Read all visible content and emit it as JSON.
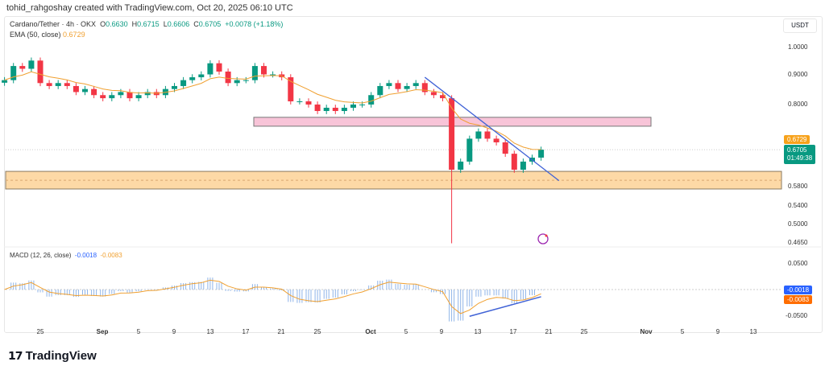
{
  "header": {
    "text": "tohid_rahgoshay created with TradingView.com, Oct 20, 2025 06:10 UTC"
  },
  "legend": {
    "symbol": "Cardano/Tether · 4h · OKX",
    "o_label": "O",
    "o": "0.6630",
    "h_label": "H",
    "h": "0.6715",
    "l_label": "L",
    "l": "0.6606",
    "c_label": "C",
    "c": "0.6705",
    "change": "+0.0078 (+1.18%)",
    "ema_label": "EMA (50, close)",
    "ema_value": "0.6729"
  },
  "macd_legend": {
    "label": "MACD (12, 26, close)",
    "macd": "-0.0018",
    "signal": "-0.0083"
  },
  "price_axis": {
    "currency": "USDT",
    "ticks": [
      "1.0000",
      "0.9000",
      "0.8000",
      "0.5800",
      "0.5400",
      "0.5000",
      "0.4650"
    ],
    "ema_tag": "0.6729",
    "price_tag": "0.6705",
    "countdown": "01:49:38"
  },
  "macd_axis": {
    "ticks": [
      "0.0500",
      "-0.0500"
    ],
    "macd_tag": "-0.0018",
    "signal_tag": "-0.0083"
  },
  "time_axis": {
    "ticks": [
      "25",
      "Sep",
      "5",
      "9",
      "13",
      "17",
      "21",
      "25",
      "Oct",
      "5",
      "9",
      "13",
      "17",
      "21",
      "25",
      "Nov",
      "5",
      "9",
      "13"
    ]
  },
  "brand": {
    "logo_text": "TradingView"
  },
  "colors": {
    "up": "#089981",
    "down": "#f23645",
    "ema": "#f0a030",
    "trendline": "#4062d6",
    "resistance_zone": "#f8c4d8",
    "support_zone": "#fdd9a6",
    "macd_tag": "#2962ff",
    "signal_tag": "#ff6d00"
  },
  "chart_data": {
    "type": "candlestick",
    "scale": "log",
    "ylim": [
      0.465,
      1.02
    ],
    "dates": [
      "08-21",
      "08-22",
      "08-23",
      "08-24",
      "08-25",
      "08-26",
      "08-27",
      "08-28",
      "08-29",
      "08-30",
      "08-31",
      "09-01",
      "09-02",
      "09-03",
      "09-04",
      "09-05",
      "09-06",
      "09-07",
      "09-08",
      "09-09",
      "09-10",
      "09-11",
      "09-12",
      "09-13",
      "09-14",
      "09-15",
      "09-16",
      "09-17",
      "09-18",
      "09-19",
      "09-20",
      "09-21",
      "09-22",
      "09-23",
      "09-24",
      "09-25",
      "09-26",
      "09-27",
      "09-28",
      "09-29",
      "09-30",
      "10-01",
      "10-02",
      "10-03",
      "10-04",
      "10-05",
      "10-06",
      "10-07",
      "10-08",
      "10-09",
      "10-10",
      "10-11",
      "10-12",
      "10-13",
      "10-14",
      "10-15",
      "10-16",
      "10-17",
      "10-18",
      "10-19",
      "10-20"
    ],
    "close": [
      0.88,
      0.93,
      0.92,
      0.95,
      0.87,
      0.86,
      0.87,
      0.86,
      0.84,
      0.85,
      0.83,
      0.82,
      0.83,
      0.84,
      0.82,
      0.83,
      0.84,
      0.83,
      0.85,
      0.86,
      0.88,
      0.89,
      0.9,
      0.94,
      0.91,
      0.87,
      0.88,
      0.88,
      0.93,
      0.9,
      0.9,
      0.89,
      0.81,
      0.81,
      0.8,
      0.78,
      0.79,
      0.78,
      0.79,
      0.8,
      0.8,
      0.83,
      0.86,
      0.87,
      0.85,
      0.86,
      0.87,
      0.84,
      0.83,
      0.82,
      0.62,
      0.64,
      0.7,
      0.72,
      0.7,
      0.69,
      0.66,
      0.62,
      0.64,
      0.65,
      0.6705
    ],
    "crash_low": {
      "date": "10-10",
      "low": 0.465
    },
    "resistance_zone": [
      0.735,
      0.761
    ],
    "support_zone": [
      0.575,
      0.616
    ],
    "support_mid": 0.595,
    "trendline": [
      {
        "date": "10-07",
        "price": 0.89
      },
      {
        "date": "10-22",
        "price": 0.594
      }
    ],
    "macd_trendline": [
      {
        "date": "10-12",
        "value": -0.052
      },
      {
        "date": "10-20",
        "value": -0.014
      }
    ]
  }
}
